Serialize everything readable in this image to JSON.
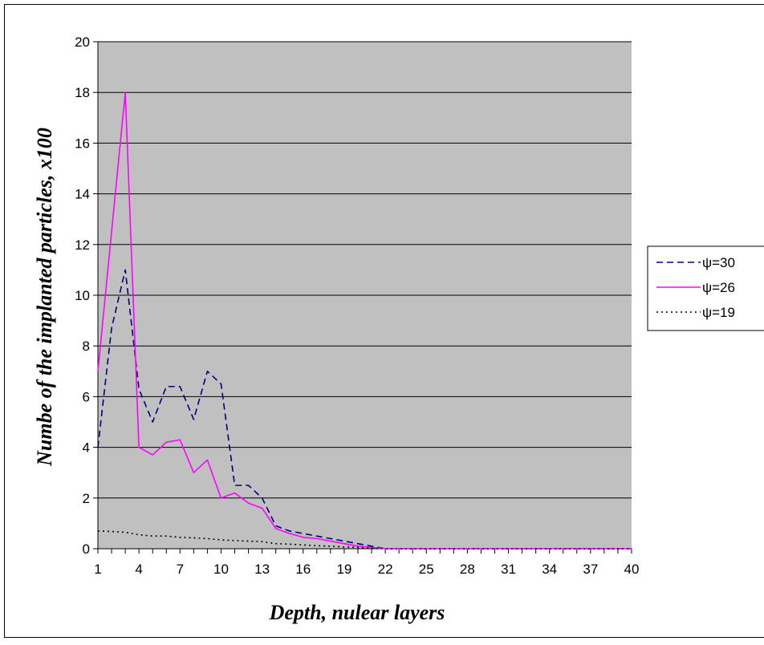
{
  "chart_data": {
    "type": "line",
    "title": "",
    "xlabel": "Depth, nulear layers",
    "ylabel": "Numbe of the implanted particles, x100",
    "x": [
      1,
      2,
      3,
      4,
      5,
      6,
      7,
      8,
      9,
      10,
      11,
      12,
      13,
      14,
      15,
      16,
      17,
      18,
      19,
      20,
      21,
      22,
      23,
      24,
      25,
      26,
      27,
      28,
      29,
      30,
      31,
      32,
      33,
      34,
      35,
      36,
      37,
      38,
      39,
      40
    ],
    "x_ticks": [
      1,
      4,
      7,
      10,
      13,
      16,
      19,
      22,
      25,
      28,
      31,
      34,
      37,
      40
    ],
    "xlim": [
      1,
      40
    ],
    "ylim": [
      0,
      20
    ],
    "y_ticks": [
      0,
      2,
      4,
      6,
      8,
      10,
      12,
      14,
      16,
      18,
      20
    ],
    "grid": true,
    "plot_background": "#c0c0c0",
    "legend_position": "right",
    "series": [
      {
        "name": "ψ=30",
        "color": "#000080",
        "dash": "dashed",
        "values": [
          4.0,
          8.7,
          11.0,
          6.3,
          5.0,
          6.4,
          6.4,
          5.1,
          7.0,
          6.5,
          2.5,
          2.5,
          2.0,
          0.9,
          0.7,
          0.6,
          0.5,
          0.4,
          0.3,
          0.2,
          0.1,
          0,
          0,
          0,
          0,
          0,
          0,
          0,
          0,
          0,
          0,
          0,
          0,
          0,
          0,
          0,
          0,
          0,
          0,
          0
        ]
      },
      {
        "name": "ψ=26",
        "color": "#ff00ff",
        "dash": "solid",
        "values": [
          7.0,
          12.5,
          18.0,
          4.0,
          3.7,
          4.2,
          4.3,
          3.0,
          3.5,
          2.0,
          2.2,
          1.8,
          1.6,
          0.8,
          0.6,
          0.45,
          0.4,
          0.3,
          0.2,
          0.1,
          0.05,
          0,
          0,
          0,
          0,
          0,
          0,
          0,
          0,
          0,
          0,
          0,
          0,
          0,
          0,
          0,
          0,
          0,
          0,
          0
        ]
      },
      {
        "name": "ψ=19",
        "color": "#000000",
        "dash": "dotted",
        "values": [
          0.7,
          0.68,
          0.65,
          0.55,
          0.5,
          0.5,
          0.45,
          0.43,
          0.4,
          0.35,
          0.32,
          0.3,
          0.28,
          0.2,
          0.18,
          0.15,
          0.12,
          0.1,
          0.07,
          0.05,
          0.02,
          0,
          0,
          0,
          0,
          0,
          0,
          0,
          0,
          0,
          0,
          0,
          0,
          0,
          0,
          0,
          0,
          0,
          0,
          0
        ]
      }
    ]
  }
}
